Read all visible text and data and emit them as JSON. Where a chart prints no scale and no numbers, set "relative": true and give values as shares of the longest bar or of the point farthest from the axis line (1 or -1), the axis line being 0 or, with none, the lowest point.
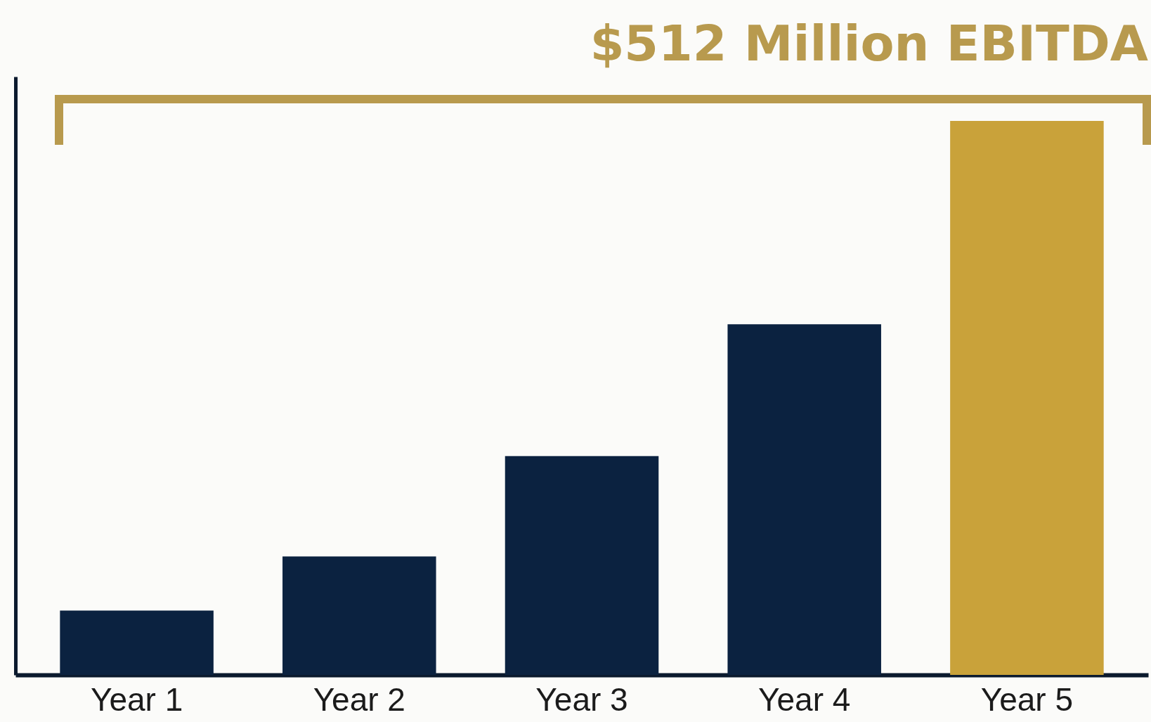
{
  "chart_data": {
    "type": "bar",
    "title": "$512 Million EBITDA",
    "relative": true,
    "categories": [
      "Year 1",
      "Year 2",
      "Year 3",
      "Year 4",
      "Year 5"
    ],
    "values": [
      0.116,
      0.214,
      0.395,
      0.633,
      1
    ],
    "colors": [
      "#0b2240",
      "#0b2240",
      "#0b2240",
      "#0b2240",
      "#c9a23a"
    ],
    "grid": false
  }
}
